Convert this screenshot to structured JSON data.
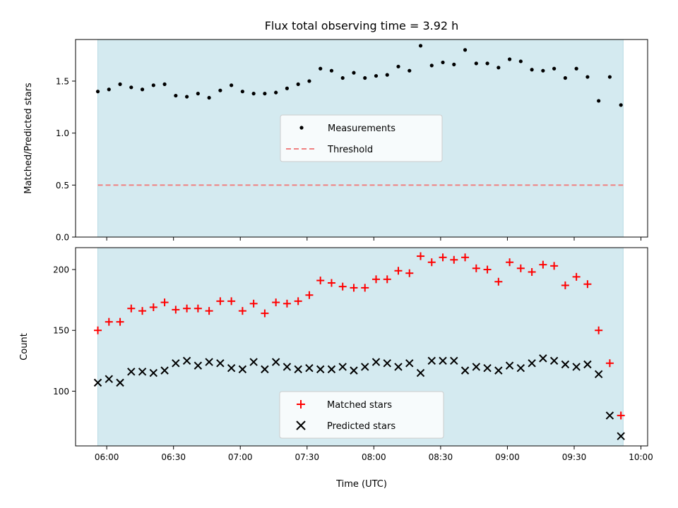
{
  "chart_data": [
    {
      "type": "scatter",
      "title": "Flux total observing time = 3.92 h",
      "xlabel": "",
      "ylabel": "Matched/Predicted stars",
      "ylim": [
        0,
        1.9
      ],
      "yticks": [
        0.0,
        0.5,
        1.0,
        1.5
      ],
      "ytick_labels": [
        "0.0",
        "0.5",
        "1.0",
        "1.5"
      ],
      "xlim": [
        "05:46",
        "10:03"
      ],
      "shaded_span": [
        "05:56",
        "09:52"
      ],
      "shade_color": "#d4eaf0",
      "grid": false,
      "legend_position": "center",
      "series": [
        {
          "name": "Measurements",
          "marker": "dot",
          "color": "#000000",
          "x": [
            "05:56",
            "06:01",
            "06:06",
            "06:11",
            "06:16",
            "06:21",
            "06:26",
            "06:31",
            "06:36",
            "06:41",
            "06:46",
            "06:51",
            "06:56",
            "07:01",
            "07:06",
            "07:11",
            "07:16",
            "07:21",
            "07:26",
            "07:31",
            "07:36",
            "07:41",
            "07:46",
            "07:51",
            "07:56",
            "08:01",
            "08:06",
            "08:11",
            "08:16",
            "08:21",
            "08:26",
            "08:31",
            "08:36",
            "08:41",
            "08:46",
            "08:51",
            "08:56",
            "09:01",
            "09:06",
            "09:11",
            "09:16",
            "09:21",
            "09:26",
            "09:31",
            "09:36",
            "09:41",
            "09:46",
            "09:51"
          ],
          "y": [
            1.4,
            1.42,
            1.47,
            1.44,
            1.42,
            1.46,
            1.47,
            1.36,
            1.35,
            1.38,
            1.34,
            1.41,
            1.46,
            1.4,
            1.38,
            1.38,
            1.39,
            1.43,
            1.47,
            1.5,
            1.62,
            1.6,
            1.53,
            1.58,
            1.53,
            1.55,
            1.56,
            1.64,
            1.6,
            1.84,
            1.65,
            1.68,
            1.66,
            1.8,
            1.67,
            1.67,
            1.63,
            1.71,
            1.69,
            1.61,
            1.6,
            1.62,
            1.53,
            1.62,
            1.54,
            1.31,
            1.54,
            1.27
          ]
        },
        {
          "name": "Threshold",
          "style": "dashed",
          "color": "#f08080",
          "x": [
            "05:56",
            "09:52"
          ],
          "y": [
            0.5,
            0.5
          ]
        }
      ]
    },
    {
      "type": "scatter",
      "title": "",
      "xlabel": "Time (UTC)",
      "ylabel": "Count",
      "ylim": [
        55,
        218
      ],
      "yticks": [
        100,
        150,
        200
      ],
      "ytick_labels": [
        "100",
        "150",
        "200"
      ],
      "xlim": [
        "05:46",
        "10:03"
      ],
      "xticks": [
        "06:00",
        "06:30",
        "07:00",
        "07:30",
        "08:00",
        "08:30",
        "09:00",
        "09:30",
        "10:00"
      ],
      "shaded_span": [
        "05:56",
        "09:52"
      ],
      "shade_color": "#d4eaf0",
      "grid": false,
      "legend_position": "lower center",
      "series": [
        {
          "name": "Matched stars",
          "marker": "plus",
          "color": "#ff0000",
          "x": [
            "05:56",
            "06:01",
            "06:06",
            "06:11",
            "06:16",
            "06:21",
            "06:26",
            "06:31",
            "06:36",
            "06:41",
            "06:46",
            "06:51",
            "06:56",
            "07:01",
            "07:06",
            "07:11",
            "07:16",
            "07:21",
            "07:26",
            "07:31",
            "07:36",
            "07:41",
            "07:46",
            "07:51",
            "07:56",
            "08:01",
            "08:06",
            "08:11",
            "08:16",
            "08:21",
            "08:26",
            "08:31",
            "08:36",
            "08:41",
            "08:46",
            "08:51",
            "08:56",
            "09:01",
            "09:06",
            "09:11",
            "09:16",
            "09:21",
            "09:26",
            "09:31",
            "09:36",
            "09:41",
            "09:46",
            "09:51"
          ],
          "y": [
            150,
            157,
            157,
            168,
            166,
            169,
            173,
            167,
            168,
            168,
            166,
            174,
            174,
            166,
            172,
            164,
            173,
            172,
            174,
            179,
            191,
            189,
            186,
            185,
            185,
            192,
            192,
            199,
            197,
            211,
            206,
            210,
            208,
            210,
            201,
            200,
            190,
            206,
            201,
            198,
            204,
            203,
            187,
            194,
            188,
            150,
            123,
            80
          ]
        },
        {
          "name": "Predicted stars",
          "marker": "x",
          "color": "#000000",
          "x": [
            "05:56",
            "06:01",
            "06:06",
            "06:11",
            "06:16",
            "06:21",
            "06:26",
            "06:31",
            "06:36",
            "06:41",
            "06:46",
            "06:51",
            "06:56",
            "07:01",
            "07:06",
            "07:11",
            "07:16",
            "07:21",
            "07:26",
            "07:31",
            "07:36",
            "07:41",
            "07:46",
            "07:51",
            "07:56",
            "08:01",
            "08:06",
            "08:11",
            "08:16",
            "08:21",
            "08:26",
            "08:31",
            "08:36",
            "08:41",
            "08:46",
            "08:51",
            "08:56",
            "09:01",
            "09:06",
            "09:11",
            "09:16",
            "09:21",
            "09:26",
            "09:31",
            "09:36",
            "09:41",
            "09:46",
            "09:51"
          ],
          "y": [
            107,
            110,
            107,
            116,
            116,
            115,
            117,
            123,
            125,
            121,
            124,
            123,
            119,
            118,
            124,
            118,
            124,
            120,
            118,
            119,
            118,
            118,
            120,
            117,
            120,
            124,
            123,
            120,
            123,
            115,
            125,
            125,
            125,
            117,
            120,
            119,
            117,
            121,
            119,
            123,
            127,
            125,
            122,
            120,
            122,
            114,
            80,
            63
          ]
        }
      ]
    }
  ]
}
